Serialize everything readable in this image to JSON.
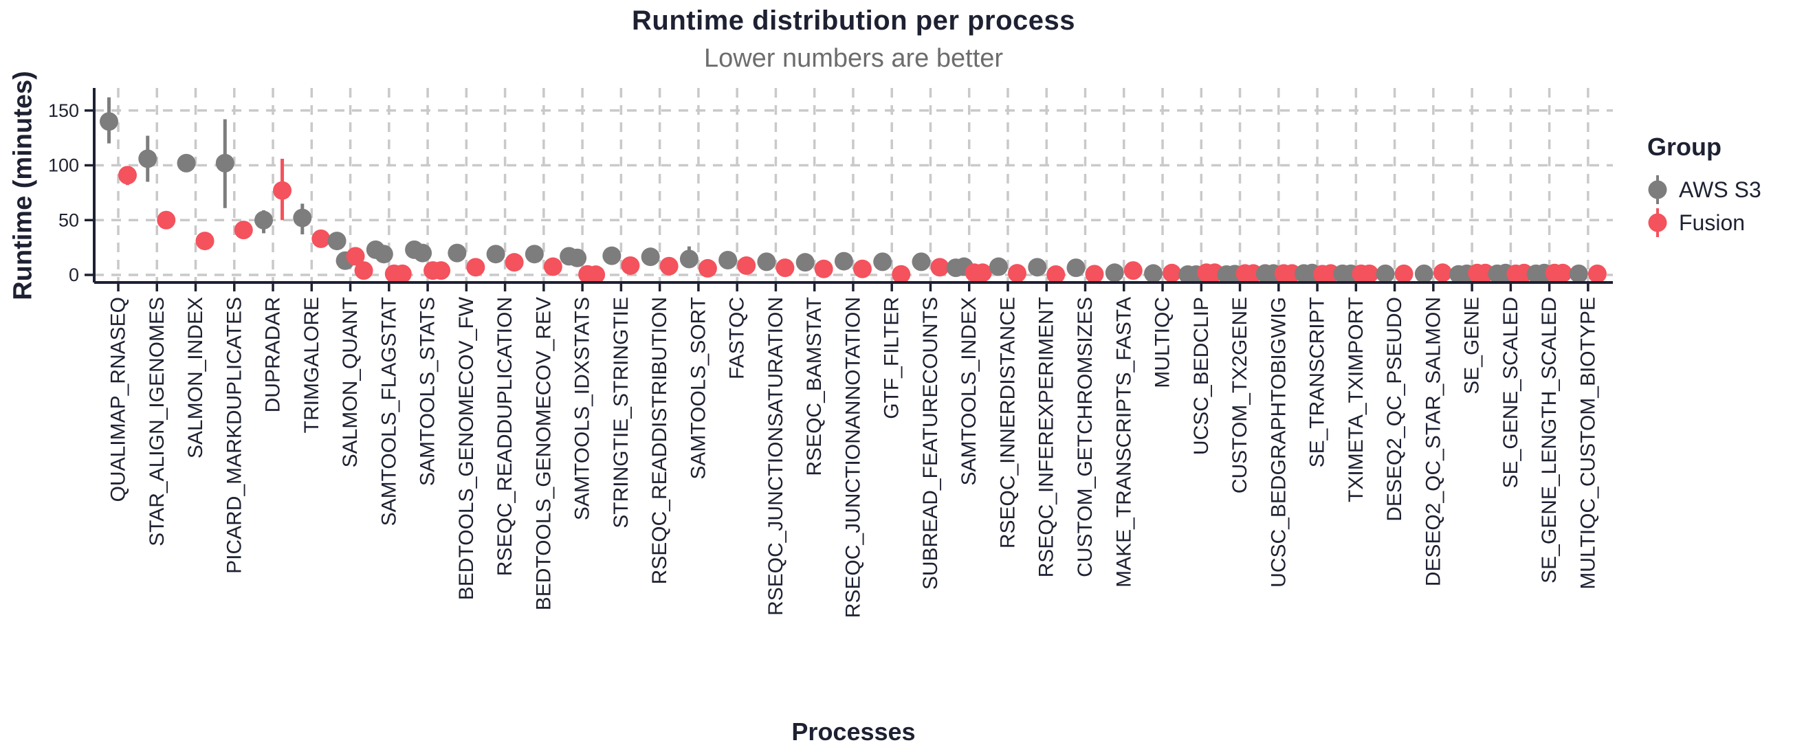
{
  "header": {
    "title": "Runtime distribution per process",
    "subtitle": "Lower numbers are better"
  },
  "axes": {
    "y_label": "Runtime (minutes)",
    "x_label": "Processes",
    "y_ticks": [
      0,
      50,
      100,
      150
    ]
  },
  "legend": {
    "title": "Group",
    "entries": [
      {
        "label": "AWS S3",
        "color": "#7d7d7d"
      },
      {
        "label": "Fusion",
        "color": "#f4525c"
      }
    ]
  },
  "style": {
    "aws_s3_color": "#7d7d7d",
    "fusion_color": "#f4525c",
    "text_color": "#1e2132",
    "subtitle_color": "#6d6d6d",
    "grid_color": "#c9c9c9",
    "background": "#ffffff"
  },
  "chart_data": {
    "type": "pointrange",
    "title": "Runtime distribution per process",
    "subtitle": "Lower numbers are better",
    "xlabel": "Processes",
    "ylabel": "Runtime (minutes)",
    "unit": "minutes",
    "ylim": [
      0,
      170
    ],
    "yticks": [
      0,
      50,
      100,
      150
    ],
    "grid": "dashed-horizontal-and-vertical",
    "legend_position": "right",
    "groups": [
      "AWS S3",
      "Fusion"
    ],
    "processes": [
      {
        "name": "QUALIMAP_RNASEQ",
        "aws_s3": {
          "points": [
            140
          ],
          "range": [
            120,
            162
          ]
        },
        "fusion": {
          "points": [
            91
          ],
          "range": [
            82,
            97
          ]
        }
      },
      {
        "name": "STAR_ALIGN_IGENOMES",
        "aws_s3": {
          "points": [
            106
          ],
          "range": [
            85,
            127
          ]
        },
        "fusion": {
          "points": [
            50
          ]
        }
      },
      {
        "name": "SALMON_INDEX",
        "aws_s3": {
          "points": [
            102
          ]
        },
        "fusion": {
          "points": [
            31
          ]
        }
      },
      {
        "name": "PICARD_MARKDUPLICATES",
        "aws_s3": {
          "points": [
            102
          ],
          "range": [
            61,
            142
          ]
        },
        "fusion": {
          "points": [
            41
          ]
        }
      },
      {
        "name": "DUPRADAR",
        "aws_s3": {
          "points": [
            50
          ],
          "range": [
            38,
            59
          ]
        },
        "fusion": {
          "points": [
            77
          ],
          "range": [
            50,
            106
          ]
        }
      },
      {
        "name": "TRIMGALORE",
        "aws_s3": {
          "points": [
            52
          ],
          "range": [
            37,
            65
          ]
        },
        "fusion": {
          "points": [
            33
          ]
        }
      },
      {
        "name": "SALMON_QUANT",
        "aws_s3": {
          "points": [
            31,
            13
          ]
        },
        "fusion": {
          "points": [
            17,
            4
          ]
        }
      },
      {
        "name": "SAMTOOLS_FLAGSTAT",
        "aws_s3": {
          "points": [
            23,
            19
          ]
        },
        "fusion": {
          "points": [
            1,
            1
          ]
        }
      },
      {
        "name": "SAMTOOLS_STATS",
        "aws_s3": {
          "points": [
            23,
            20
          ]
        },
        "fusion": {
          "points": [
            4,
            4
          ]
        }
      },
      {
        "name": "BEDTOOLS_GENOMECOV_FW",
        "aws_s3": {
          "points": [
            20
          ]
        },
        "fusion": {
          "points": [
            7
          ]
        }
      },
      {
        "name": "RSEQC_READDUPLICATION",
        "aws_s3": {
          "points": [
            19
          ]
        },
        "fusion": {
          "points": [
            11.5
          ]
        }
      },
      {
        "name": "BEDTOOLS_GENOMECOV_REV",
        "aws_s3": {
          "points": [
            19
          ]
        },
        "fusion": {
          "points": [
            7.5
          ]
        }
      },
      {
        "name": "SAMTOOLS_IDXSTATS",
        "aws_s3": {
          "points": [
            17,
            15.5
          ]
        },
        "fusion": {
          "points": [
            0.5,
            0.2
          ]
        }
      },
      {
        "name": "STRINGTIE_STRINGTIE",
        "aws_s3": {
          "points": [
            17.5
          ]
        },
        "fusion": {
          "points": [
            8.5
          ]
        }
      },
      {
        "name": "RSEQC_READDISTRIBUTION",
        "aws_s3": {
          "points": [
            16.5
          ]
        },
        "fusion": {
          "points": [
            8
          ]
        }
      },
      {
        "name": "SAMTOOLS_SORT",
        "aws_s3": {
          "points": [
            14.5
          ],
          "range": [
            7,
            26
          ]
        },
        "fusion": {
          "points": [
            6
          ]
        }
      },
      {
        "name": "FASTQC",
        "aws_s3": {
          "points": [
            13.5
          ]
        },
        "fusion": {
          "points": [
            8.5
          ]
        }
      },
      {
        "name": "RSEQC_JUNCTIONSATURATION",
        "aws_s3": {
          "points": [
            12
          ]
        },
        "fusion": {
          "points": [
            6.5
          ]
        }
      },
      {
        "name": "RSEQC_BAMSTAT",
        "aws_s3": {
          "points": [
            11.5
          ]
        },
        "fusion": {
          "points": [
            5.5
          ]
        }
      },
      {
        "name": "RSEQC_JUNCTIONANNOTATION",
        "aws_s3": {
          "points": [
            12.5
          ]
        },
        "fusion": {
          "points": [
            5.5
          ]
        }
      },
      {
        "name": "GTF_FILTER",
        "aws_s3": {
          "points": [
            12
          ]
        },
        "fusion": {
          "points": [
            0.5
          ]
        }
      },
      {
        "name": "SUBREAD_FEATURECOUNTS",
        "aws_s3": {
          "points": [
            12
          ]
        },
        "fusion": {
          "points": [
            7
          ]
        }
      },
      {
        "name": "SAMTOOLS_INDEX",
        "aws_s3": {
          "points": [
            6.5,
            7.5
          ]
        },
        "fusion": {
          "points": [
            2,
            2
          ]
        }
      },
      {
        "name": "RSEQC_INNERDISTANCE",
        "aws_s3": {
          "points": [
            7.5
          ]
        },
        "fusion": {
          "points": [
            1.5
          ]
        }
      },
      {
        "name": "RSEQC_INFEREXPERIMENT",
        "aws_s3": {
          "points": [
            7
          ]
        },
        "fusion": {
          "points": [
            0.3
          ]
        }
      },
      {
        "name": "CUSTOM_GETCHROMSIZES",
        "aws_s3": {
          "points": [
            6.5
          ]
        },
        "fusion": {
          "points": [
            0.7
          ]
        }
      },
      {
        "name": "MAKE_TRANSCRIPTS_FASTA",
        "aws_s3": {
          "points": [
            2
          ]
        },
        "fusion": {
          "points": [
            4
          ]
        }
      },
      {
        "name": "MULTIQC",
        "aws_s3": {
          "points": [
            1.3
          ]
        },
        "fusion": {
          "points": [
            1.7
          ]
        }
      },
      {
        "name": "UCSC_BEDCLIP",
        "aws_s3": {
          "points": [
            0.3,
            0.3
          ]
        },
        "fusion": {
          "points": [
            2,
            2
          ]
        }
      },
      {
        "name": "CUSTOM_TX2GENE",
        "aws_s3": {
          "points": [
            0.3,
            0.7
          ]
        },
        "fusion": {
          "points": [
            1.3,
            1.3
          ]
        }
      },
      {
        "name": "UCSC_BEDGRAPHTOBIGWIG",
        "aws_s3": {
          "points": [
            1.3,
            1.3
          ]
        },
        "fusion": {
          "points": [
            1.3,
            1.3
          ]
        }
      },
      {
        "name": "SE_TRANSCRIPT",
        "aws_s3": {
          "points": [
            1.3,
            1.7
          ]
        },
        "fusion": {
          "points": [
            0.7,
            1.3
          ]
        }
      },
      {
        "name": "TXIMETA_TXIMPORT",
        "aws_s3": {
          "points": [
            1,
            1
          ]
        },
        "fusion": {
          "points": [
            1,
            1
          ]
        }
      },
      {
        "name": "DESEQ2_QC_PSEUDO",
        "aws_s3": {
          "points": [
            1
          ]
        },
        "fusion": {
          "points": [
            1
          ]
        }
      },
      {
        "name": "DESEQ2_QC_STAR_SALMON",
        "aws_s3": {
          "points": [
            1
          ]
        },
        "fusion": {
          "points": [
            2
          ]
        }
      },
      {
        "name": "SE_GENE",
        "aws_s3": {
          "points": [
            0.5,
            1
          ]
        },
        "fusion": {
          "points": [
            1.7,
            1.7
          ]
        }
      },
      {
        "name": "SE_GENE_SCALED",
        "aws_s3": {
          "points": [
            1,
            1.7
          ]
        },
        "fusion": {
          "points": [
            1,
            1.7
          ]
        }
      },
      {
        "name": "SE_GENE_LENGTH_SCALED",
        "aws_s3": {
          "points": [
            1,
            1.7
          ]
        },
        "fusion": {
          "points": [
            1.7,
            1.7
          ]
        }
      },
      {
        "name": "MULTIQC_CUSTOM_BIOTYPE",
        "aws_s3": {
          "points": [
            1
          ]
        },
        "fusion": {
          "points": [
            1
          ]
        }
      }
    ]
  }
}
